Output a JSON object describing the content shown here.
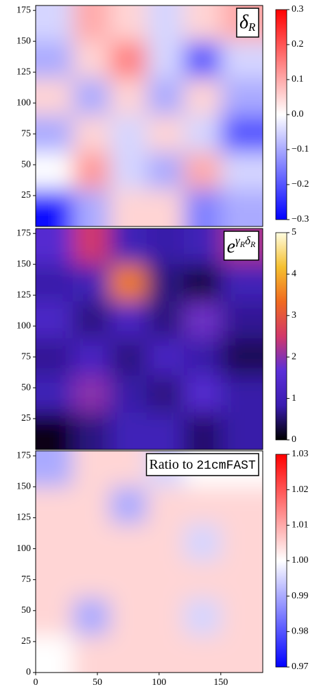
{
  "chart_data": [
    {
      "type": "heatmap",
      "annotation": [
        {
          "text": "δ",
          "style": "base"
        },
        {
          "text": "R",
          "style": "sub"
        }
      ],
      "x": [
        15,
        45,
        75,
        105,
        135,
        165
      ],
      "y": [
        165,
        135,
        105,
        75,
        45,
        15
      ],
      "values": [
        [
          -0.05,
          0.1,
          0.05,
          -0.05,
          0.05,
          0.1
        ],
        [
          -0.1,
          0.05,
          0.15,
          -0.05,
          -0.2,
          -0.05
        ],
        [
          0.05,
          -0.1,
          0.05,
          -0.1,
          0.05,
          -0.1
        ],
        [
          -0.1,
          0.05,
          -0.05,
          0.05,
          -0.05,
          -0.2
        ],
        [
          0.0,
          0.12,
          -0.05,
          -0.1,
          0.1,
          -0.05
        ],
        [
          -0.28,
          -0.1,
          0.05,
          0.05,
          -0.15,
          -0.1
        ]
      ],
      "xlim": [
        0,
        184
      ],
      "ylim": [
        0,
        179
      ],
      "yticks": [
        25,
        50,
        75,
        100,
        125,
        150,
        175
      ],
      "colormap": [
        "#0000ff",
        "#ffffff",
        "#ff0000"
      ],
      "zlim": [
        -0.3,
        0.3
      ],
      "zticks": [
        0.3,
        0.2,
        0.1,
        {
          "value": 0,
          "label": "0.0"
        },
        {
          "value": -0.1,
          "label": "−0.1"
        },
        {
          "value": -0.2,
          "label": "−0.2"
        },
        {
          "value": -0.3,
          "label": "−0.3"
        }
      ]
    },
    {
      "type": "heatmap",
      "annotation": [
        {
          "text": "e",
          "style": "base"
        },
        {
          "text": "γ",
          "style": "sup"
        },
        {
          "text": "R",
          "style": "supsub"
        },
        {
          "text": "δ",
          "style": "sup"
        },
        {
          "text": "R",
          "style": "supsub"
        }
      ],
      "x": [
        15,
        45,
        75,
        105,
        135,
        165
      ],
      "y": [
        165,
        135,
        105,
        75,
        45,
        15
      ],
      "values": [
        [
          1.5,
          2.5,
          1.0,
          0.8,
          1.0,
          2.2
        ],
        [
          0.8,
          1.0,
          3.5,
          0.6,
          0.3,
          1.0
        ],
        [
          1.3,
          0.6,
          1.2,
          0.6,
          1.8,
          0.7
        ],
        [
          0.7,
          1.2,
          0.6,
          1.2,
          0.8,
          0.4
        ],
        [
          1.0,
          2.0,
          0.8,
          0.6,
          1.5,
          0.8
        ],
        [
          0.1,
          0.6,
          1.0,
          1.0,
          0.5,
          0.8
        ]
      ],
      "xlim": [
        0,
        184
      ],
      "ylim": [
        0,
        179
      ],
      "yticks": [
        25,
        50,
        75,
        100,
        125,
        150,
        175
      ],
      "colormap": [
        "#000000",
        "#3a1cb0",
        "#5b2fd8",
        "#d2386a",
        "#f06a20",
        "#f5c030",
        "#fffde0"
      ],
      "zlim": [
        0,
        5
      ],
      "zticks": [
        5,
        4,
        3,
        2,
        1,
        0
      ]
    },
    {
      "type": "heatmap",
      "annotation": [
        {
          "text": "Ratio to ",
          "style": "base"
        },
        {
          "text": "21cmFAST",
          "style": "mono"
        }
      ],
      "x": [
        15,
        45,
        75,
        105,
        135,
        165
      ],
      "y": [
        165,
        135,
        105,
        75,
        45,
        15
      ],
      "values": [
        [
          0.99,
          1.005,
          1.005,
          0.995,
          1.0,
          1.0
        ],
        [
          1.005,
          1.005,
          0.99,
          1.005,
          1.005,
          1.005
        ],
        [
          1.005,
          1.005,
          1.005,
          1.005,
          0.995,
          1.005
        ],
        [
          1.005,
          1.005,
          1.005,
          1.005,
          1.005,
          1.005
        ],
        [
          1.005,
          0.99,
          1.005,
          1.005,
          0.995,
          1.005
        ],
        [
          1.0,
          1.005,
          1.005,
          1.005,
          1.005,
          1.005
        ]
      ],
      "xlim": [
        0,
        184
      ],
      "ylim": [
        0,
        179
      ],
      "xticks": [
        0,
        50,
        100,
        150
      ],
      "yticks": [
        0,
        25,
        50,
        75,
        100,
        125,
        150,
        175
      ],
      "colormap": [
        "#0000ff",
        "#ffffff",
        "#ff0000"
      ],
      "zlim": [
        0.97,
        1.03
      ],
      "zticks": [
        1.03,
        1.02,
        1.01,
        {
          "value": 1,
          "label": "1.00"
        },
        0.99,
        0.98,
        0.97
      ]
    }
  ]
}
